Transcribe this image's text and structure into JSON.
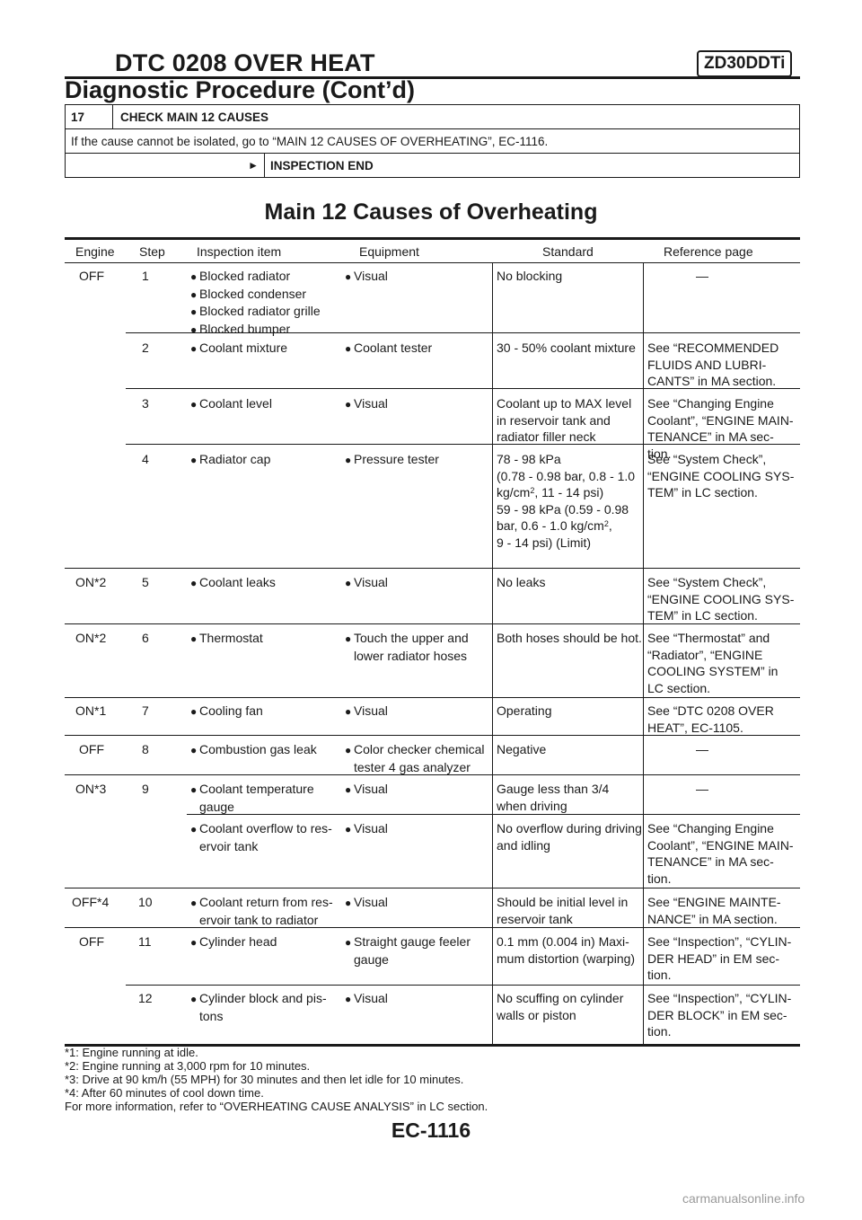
{
  "header": {
    "title": "DTC 0208 OVER HEAT",
    "badge": "ZD30DDTi",
    "subtitle": "Diagnostic Procedure (Cont’d)"
  },
  "step_box": {
    "number": "17",
    "title": "CHECK MAIN 12 CAUSES",
    "text": "If the cause cannot be isolated, go to “MAIN 12 CAUSES OF OVERHEATING”, EC-1116.",
    "result_icon": "right-arrow-icon",
    "result": "INSPECTION END"
  },
  "section_title": "Main 12 Causes of Overheating",
  "table": {
    "headers": [
      "Engine",
      "Step",
      "Inspection item",
      "Equipment",
      "Standard",
      "Reference page"
    ],
    "rows": [
      {
        "engine": "OFF",
        "step": "1",
        "items": [
          "Blocked radiator",
          "Blocked condenser",
          "Blocked radiator grille",
          "Blocked bumper"
        ],
        "equipment": [
          "Visual"
        ],
        "standard": [
          "No blocking"
        ],
        "reference": [
          "—"
        ]
      },
      {
        "engine": "",
        "step": "2",
        "items": [
          "Coolant mixture"
        ],
        "equipment": [
          "Coolant tester"
        ],
        "standard": [
          "30 - 50% coolant mixture"
        ],
        "reference": [
          "See “RECOMMENDED",
          "FLUIDS AND LUBRI-",
          "CANTS” in MA section."
        ]
      },
      {
        "engine": "",
        "step": "3",
        "items": [
          "Coolant level"
        ],
        "equipment": [
          "Visual"
        ],
        "standard": [
          "Coolant up to MAX level",
          "in reservoir tank and",
          "radiator filler neck"
        ],
        "reference": [
          "See “Changing Engine",
          "Coolant”, “ENGINE MAIN-",
          "TENANCE” in MA sec-",
          "tion."
        ]
      },
      {
        "engine": "",
        "step": "4",
        "items": [
          "Radiator cap"
        ],
        "equipment": [
          "Pressure tester"
        ],
        "standard": [
          "78 - 98 kPa",
          "(0.78 - 0.98 bar, 0.8 - 1.0",
          "kg/cm",
          "2",
          ", 11 - 14 psi)",
          "59 - 98 kPa (0.59 - 0.98",
          "bar, 0.6 - 1.0 kg/cm",
          "2",
          ",",
          "9 - 14 psi) (Limit)"
        ],
        "reference": [
          "See “System Check”,",
          "“ENGINE COOLING SYS-",
          "TEM” in LC section."
        ]
      },
      {
        "engine": "ON*2",
        "step": "5",
        "items": [
          "Coolant leaks"
        ],
        "equipment": [
          "Visual"
        ],
        "standard": [
          "No leaks"
        ],
        "reference": [
          "See “System Check”,",
          "“ENGINE COOLING SYS-",
          "TEM” in LC section."
        ]
      },
      {
        "engine": "ON*2",
        "step": "6",
        "items": [
          "Thermostat"
        ],
        "equipment": [
          "Touch the upper and",
          "lower radiator hoses"
        ],
        "standard": [
          "Both hoses should be hot."
        ],
        "reference": [
          "See “Thermostat” and",
          "“Radiator”, “ENGINE",
          "COOLING SYSTEM” in",
          "LC section."
        ]
      },
      {
        "engine": "ON*1",
        "step": "7",
        "items": [
          "Cooling fan"
        ],
        "equipment": [
          "Visual"
        ],
        "standard": [
          "Operating"
        ],
        "reference": [
          "See “DTC 0208 OVER",
          "HEAT”, EC-1105."
        ]
      },
      {
        "engine": "OFF",
        "step": "8",
        "items": [
          "Combustion gas leak"
        ],
        "equipment": [
          "Color checker chemical",
          "tester 4 gas analyzer"
        ],
        "standard": [
          "Negative"
        ],
        "reference": [
          "—"
        ]
      },
      {
        "engine": "ON*3",
        "step": "9",
        "items": [
          "Coolant temperature",
          "gauge"
        ],
        "equipment": [
          "Visual"
        ],
        "standard": [
          "Gauge less than 3/4",
          "when driving"
        ],
        "reference": [
          "—"
        ]
      },
      {
        "engine": "",
        "step": "",
        "items": [
          "Coolant overflow to res-",
          "ervoir tank"
        ],
        "equipment": [
          "Visual"
        ],
        "standard": [
          "No overflow during driving",
          "and idling"
        ],
        "reference": [
          "See “Changing Engine",
          "Coolant”, “ENGINE MAIN-",
          "TENANCE” in MA sec-",
          "tion."
        ]
      },
      {
        "engine": "OFF*4",
        "step": "10",
        "items": [
          "Coolant return from res-",
          "ervoir tank to radiator"
        ],
        "equipment": [
          "Visual"
        ],
        "standard": [
          "Should be initial level in",
          "reservoir tank"
        ],
        "reference": [
          "See “ENGINE MAINTE-",
          "NANCE” in MA section."
        ]
      },
      {
        "engine": "OFF",
        "step": "11",
        "items": [
          "Cylinder head"
        ],
        "equipment": [
          "Straight gauge feeler",
          "gauge"
        ],
        "standard": [
          "0.1 mm (0.004 in) Maxi-",
          "mum distortion (warping)"
        ],
        "reference": [
          "See “Inspection”, “CYLIN-",
          "DER HEAD” in EM sec-",
          "tion."
        ]
      },
      {
        "engine": "",
        "step": "12",
        "items": [
          "Cylinder block and pis-",
          "tons"
        ],
        "equipment": [
          "Visual"
        ],
        "standard": [
          "No scuffing on cylinder",
          "walls or piston"
        ],
        "reference": [
          "See “Inspection”, “CYLIN-",
          "DER BLOCK” in EM sec-",
          "tion."
        ]
      }
    ]
  },
  "notes": [
    "*1: Engine running at idle.",
    "*2: Engine running at 3,000 rpm for 10 minutes.",
    "*3: Drive at 90 km/h (55 MPH) for 30 minutes and then let idle for 10 minutes.",
    "*4: After 60 minutes of cool down time.",
    "For more information, refer to “OVERHEATING CAUSE ANALYSIS” in LC section."
  ],
  "footer": "EC-1116",
  "watermark": "carmanualsonline.info"
}
